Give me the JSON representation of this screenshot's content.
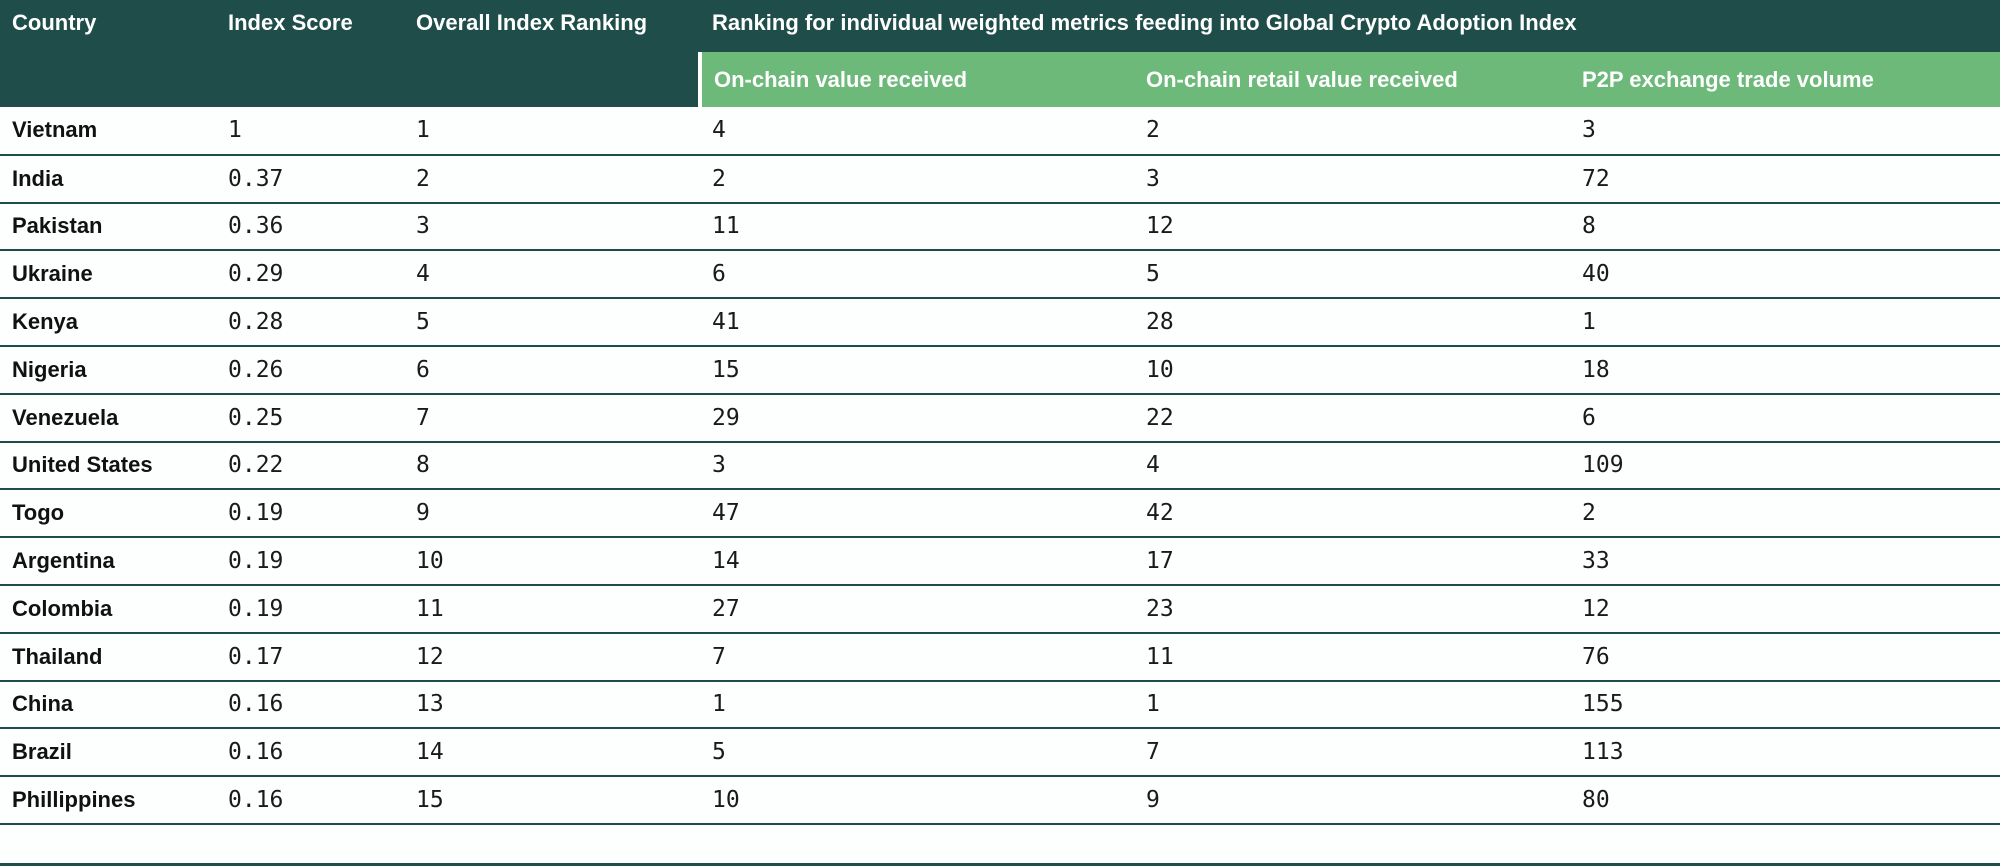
{
  "table": {
    "columns": {
      "country": "Country",
      "index_score": "Index Score",
      "overall_rank": "Overall Index Ranking"
    },
    "group_header": "Ranking for individual weighted metrics feeding into Global Crypto Adoption Index",
    "sub_columns": {
      "on_chain_value": "On-chain value received",
      "on_chain_retail": "On-chain retail value received",
      "p2p_volume": "P2P exchange trade volume"
    },
    "rows": [
      {
        "country": "Vietnam",
        "index_score": "1",
        "overall_rank": "1",
        "on_chain_value": "4",
        "on_chain_retail": "2",
        "p2p_volume": "3"
      },
      {
        "country": "India",
        "index_score": "0.37",
        "overall_rank": "2",
        "on_chain_value": "2",
        "on_chain_retail": "3",
        "p2p_volume": "72"
      },
      {
        "country": "Pakistan",
        "index_score": "0.36",
        "overall_rank": "3",
        "on_chain_value": "11",
        "on_chain_retail": "12",
        "p2p_volume": "8"
      },
      {
        "country": "Ukraine",
        "index_score": "0.29",
        "overall_rank": "4",
        "on_chain_value": "6",
        "on_chain_retail": "5",
        "p2p_volume": "40"
      },
      {
        "country": "Kenya",
        "index_score": "0.28",
        "overall_rank": "5",
        "on_chain_value": "41",
        "on_chain_retail": "28",
        "p2p_volume": "1"
      },
      {
        "country": "Nigeria",
        "index_score": "0.26",
        "overall_rank": "6",
        "on_chain_value": "15",
        "on_chain_retail": "10",
        "p2p_volume": "18"
      },
      {
        "country": "Venezuela",
        "index_score": "0.25",
        "overall_rank": "7",
        "on_chain_value": "29",
        "on_chain_retail": "22",
        "p2p_volume": "6"
      },
      {
        "country": "United States",
        "index_score": "0.22",
        "overall_rank": "8",
        "on_chain_value": "3",
        "on_chain_retail": "4",
        "p2p_volume": "109"
      },
      {
        "country": "Togo",
        "index_score": "0.19",
        "overall_rank": "9",
        "on_chain_value": "47",
        "on_chain_retail": "42",
        "p2p_volume": "2"
      },
      {
        "country": "Argentina",
        "index_score": "0.19",
        "overall_rank": "10",
        "on_chain_value": "14",
        "on_chain_retail": "17",
        "p2p_volume": "33"
      },
      {
        "country": "Colombia",
        "index_score": "0.19",
        "overall_rank": "11",
        "on_chain_value": "27",
        "on_chain_retail": "23",
        "p2p_volume": "12"
      },
      {
        "country": "Thailand",
        "index_score": "0.17",
        "overall_rank": "12",
        "on_chain_value": "7",
        "on_chain_retail": "11",
        "p2p_volume": "76"
      },
      {
        "country": "China",
        "index_score": "0.16",
        "overall_rank": "13",
        "on_chain_value": "1",
        "on_chain_retail": "1",
        "p2p_volume": "155"
      },
      {
        "country": "Brazil",
        "index_score": "0.16",
        "overall_rank": "14",
        "on_chain_value": "5",
        "on_chain_retail": "7",
        "p2p_volume": "113"
      },
      {
        "country": "Phillippines",
        "index_score": "0.16",
        "overall_rank": "15",
        "on_chain_value": "10",
        "on_chain_retail": "9",
        "p2p_volume": "80"
      }
    ]
  },
  "colors": {
    "header_bg": "#1F4E4A",
    "subheader_bg": "#6DB97A",
    "row_border": "#1F4E4A",
    "header_text": "#FFFFFF",
    "body_text": "#1A1A1A"
  }
}
